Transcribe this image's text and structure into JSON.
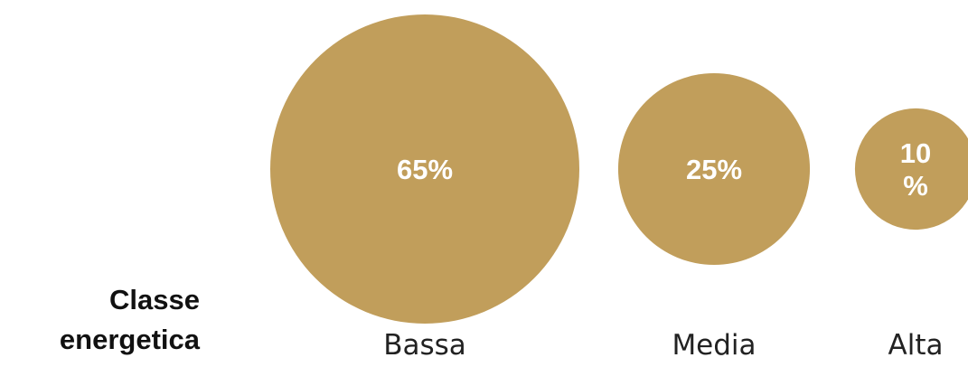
{
  "chart_data": {
    "type": "bubble",
    "ylabel_lines": [
      "Classe",
      "energetica"
    ],
    "categories": [
      "Bassa",
      "Media",
      "Alta"
    ],
    "values": [
      65,
      25,
      10
    ],
    "value_labels": [
      "65%",
      "25%",
      "10\n%"
    ],
    "unit": "%",
    "color": "#C19E5B",
    "label_color": "#FFFFFF",
    "category_label_color": "#222222",
    "legend": "none",
    "grid": false
  }
}
